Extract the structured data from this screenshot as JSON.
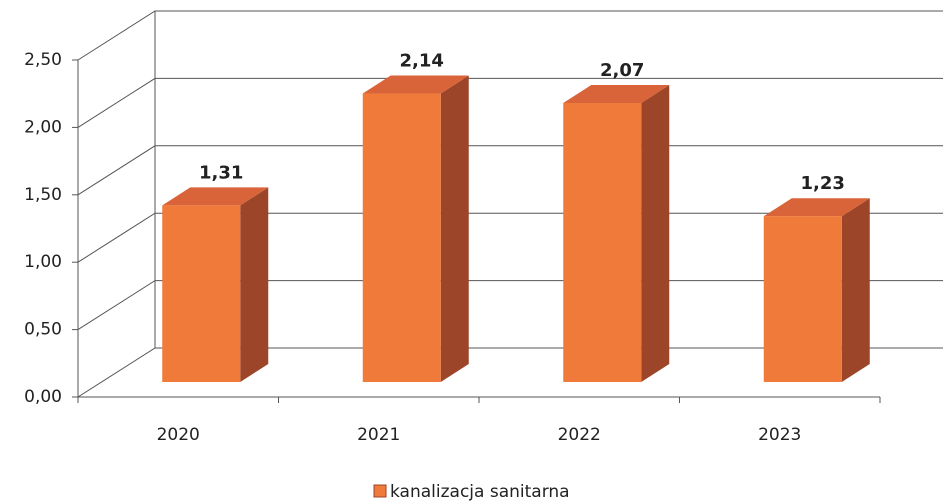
{
  "chart_data": {
    "type": "bar",
    "categories": [
      "2020",
      "2021",
      "2022",
      "2023"
    ],
    "series": [
      {
        "name": "kanalizacja sanitarna",
        "color": "#f07a3a",
        "values": [
          1.31,
          2.14,
          2.07,
          1.23
        ],
        "value_labels": [
          "1,31",
          "2,14",
          "2,07",
          "1,23"
        ]
      }
    ],
    "ylim": [
      0,
      2.5
    ],
    "yticks": [
      {
        "value": 0,
        "label": "0,00"
      },
      {
        "value": 0.5,
        "label": "0,50"
      },
      {
        "value": 1,
        "label": "1,00"
      },
      {
        "value": 1.5,
        "label": "1,50"
      },
      {
        "value": 2,
        "label": "2,00"
      },
      {
        "value": 2.5,
        "label": "2,50"
      }
    ],
    "grid": true,
    "legend": "bottom"
  }
}
